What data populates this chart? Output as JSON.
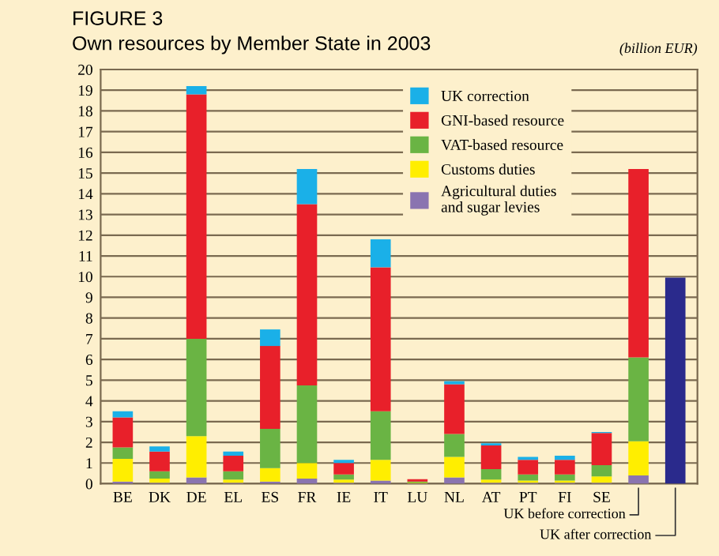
{
  "chart_data": {
    "type": "bar",
    "stacked": true,
    "title": "FIGURE 3",
    "subtitle": "Own resources by Member State in 2003",
    "annotations": [
      "(billion EUR)",
      "UK before correction",
      "UK after correction"
    ],
    "categories": [
      "BE",
      "DK",
      "DE",
      "EL",
      "ES",
      "FR",
      "IE",
      "IT",
      "LU",
      "NL",
      "AT",
      "PT",
      "FI",
      "SE",
      null,
      null
    ],
    "series": [
      {
        "name": "Agricultural duties and sugar levies",
        "color": "#8a74b0",
        "values": [
          0.1,
          0.05,
          0.3,
          0.05,
          0.1,
          0.25,
          0.05,
          0.15,
          0.02,
          0.3,
          0.05,
          0.05,
          0.05,
          0.05,
          0.4,
          null
        ]
      },
      {
        "name": "Customs duties",
        "color": "#ffee00",
        "values": [
          1.1,
          0.2,
          2.0,
          0.15,
          0.65,
          0.75,
          0.15,
          1.0,
          0.03,
          1.0,
          0.15,
          0.1,
          0.1,
          0.3,
          1.65,
          null
        ]
      },
      {
        "name": "VAT-based resource",
        "color": "#6ab444",
        "values": [
          0.55,
          0.35,
          4.7,
          0.4,
          1.9,
          3.75,
          0.25,
          2.35,
          0.05,
          1.1,
          0.5,
          0.3,
          0.3,
          0.55,
          4.05,
          null
        ]
      },
      {
        "name": "GNI-based resource",
        "color": "#e8202a",
        "values": [
          1.45,
          0.95,
          11.8,
          0.75,
          4.0,
          8.75,
          0.55,
          6.95,
          0.12,
          2.4,
          1.15,
          0.7,
          0.7,
          1.55,
          9.1,
          null
        ]
      },
      {
        "name": "UK correction",
        "color": "#1ab0e8",
        "values": [
          0.3,
          0.25,
          0.4,
          0.2,
          0.8,
          1.7,
          0.15,
          1.35,
          null,
          0.15,
          0.1,
          0.15,
          0.2,
          0.05,
          null,
          null
        ]
      },
      {
        "color": "#2a2a8c",
        "values": [
          null,
          null,
          null,
          null,
          null,
          null,
          null,
          null,
          null,
          null,
          null,
          null,
          null,
          null,
          null,
          9.95
        ]
      }
    ],
    "ylim": [
      0,
      20
    ],
    "yticks": [
      0,
      1,
      2,
      3,
      4,
      5,
      6,
      7,
      8,
      9,
      10,
      11,
      12,
      13,
      14,
      15,
      16,
      17,
      18,
      19,
      20
    ],
    "grid": "y",
    "legend": "top right"
  }
}
